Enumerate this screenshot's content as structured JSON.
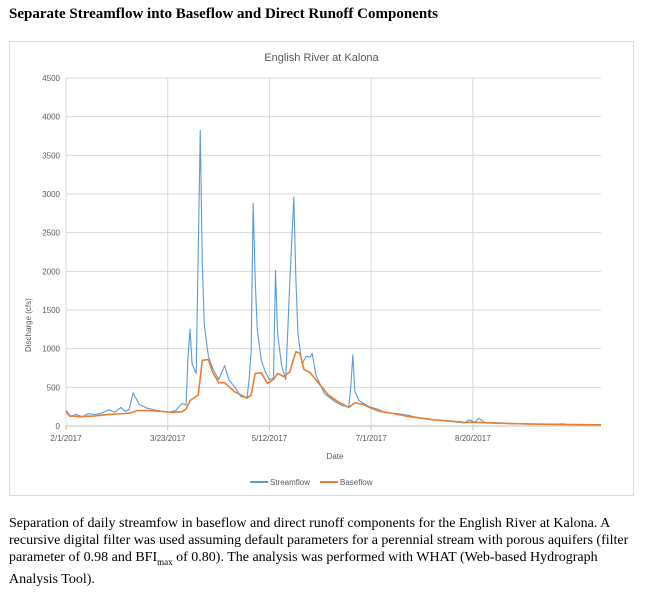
{
  "heading": "Separate Streamflow into Baseflow and Direct Runoff Components",
  "caption": {
    "part1": "Separation of daily streamfow in baseflow and direct runoff components for the English River at Kalona. A recursive digital filter was used assuming default parameters for a perennial stream with porous aquifers (filter parameter of 0.98 and BFI",
    "sub": "max",
    "part2": " of 0.80). The analysis was performed with WHAT (Web-based Hydrograph Analysis Tool)."
  },
  "chart_data": {
    "type": "line",
    "title": "English River at Kalona",
    "xlabel": "Date",
    "ylabel": "Discharge (cfs)",
    "ylim": [
      0,
      4500
    ],
    "yticks": [
      0,
      500,
      1000,
      1500,
      2000,
      2500,
      3000,
      3500,
      4000,
      4500
    ],
    "xlim": [
      "2017-02-01",
      "2017-10-22"
    ],
    "xticks": [
      "2017-02-01",
      "2017-03-23",
      "2017-05-12",
      "2017-07-01",
      "2017-08-20"
    ],
    "xtick_labels": [
      "2/1/2017",
      "3/23/2017",
      "5/12/2017",
      "7/1/2017",
      "8/20/2017"
    ],
    "grid": true,
    "legend_position": "bottom",
    "colors": {
      "Streamflow": "#5b9bd5",
      "Baseflow": "#ed7d31"
    },
    "series": [
      {
        "name": "Streamflow",
        "points": [
          [
            "2017-02-01",
            180
          ],
          [
            "2017-02-03",
            120
          ],
          [
            "2017-02-06",
            150
          ],
          [
            "2017-02-09",
            120
          ],
          [
            "2017-02-12",
            160
          ],
          [
            "2017-02-15",
            150
          ],
          [
            "2017-02-18",
            160
          ],
          [
            "2017-02-22",
            210
          ],
          [
            "2017-02-25",
            180
          ],
          [
            "2017-02-28",
            240
          ],
          [
            "2017-03-02",
            190
          ],
          [
            "2017-03-04",
            210
          ],
          [
            "2017-03-06",
            430
          ],
          [
            "2017-03-09",
            280
          ],
          [
            "2017-03-13",
            230
          ],
          [
            "2017-03-16",
            210
          ],
          [
            "2017-03-20",
            190
          ],
          [
            "2017-03-24",
            180
          ],
          [
            "2017-03-27",
            200
          ],
          [
            "2017-03-30",
            290
          ],
          [
            "2017-04-01",
            270
          ],
          [
            "2017-04-02",
            900
          ],
          [
            "2017-04-03",
            1250
          ],
          [
            "2017-04-04",
            800
          ],
          [
            "2017-04-06",
            680
          ],
          [
            "2017-04-08",
            3820
          ],
          [
            "2017-04-09",
            2100
          ],
          [
            "2017-04-10",
            1300
          ],
          [
            "2017-04-12",
            900
          ],
          [
            "2017-04-14",
            750
          ],
          [
            "2017-04-17",
            600
          ],
          [
            "2017-04-20",
            780
          ],
          [
            "2017-04-22",
            600
          ],
          [
            "2017-04-25",
            500
          ],
          [
            "2017-04-28",
            380
          ],
          [
            "2017-05-01",
            370
          ],
          [
            "2017-05-02",
            600
          ],
          [
            "2017-05-03",
            950
          ],
          [
            "2017-05-04",
            2880
          ],
          [
            "2017-05-05",
            1900
          ],
          [
            "2017-05-06",
            1250
          ],
          [
            "2017-05-08",
            850
          ],
          [
            "2017-05-10",
            700
          ],
          [
            "2017-05-12",
            600
          ],
          [
            "2017-05-14",
            620
          ],
          [
            "2017-05-15",
            2010
          ],
          [
            "2017-05-16",
            1200
          ],
          [
            "2017-05-18",
            780
          ],
          [
            "2017-05-20",
            600
          ],
          [
            "2017-05-22",
            1850
          ],
          [
            "2017-05-24",
            2960
          ],
          [
            "2017-05-25",
            1900
          ],
          [
            "2017-05-26",
            1200
          ],
          [
            "2017-05-28",
            800
          ],
          [
            "2017-05-30",
            900
          ],
          [
            "2017-06-01",
            890
          ],
          [
            "2017-06-02",
            940
          ],
          [
            "2017-06-04",
            650
          ],
          [
            "2017-06-08",
            420
          ],
          [
            "2017-06-13",
            320
          ],
          [
            "2017-06-17",
            260
          ],
          [
            "2017-06-20",
            250
          ],
          [
            "2017-06-21",
            500
          ],
          [
            "2017-06-22",
            920
          ],
          [
            "2017-06-23",
            450
          ],
          [
            "2017-06-25",
            330
          ],
          [
            "2017-06-30",
            250
          ],
          [
            "2017-07-04",
            220
          ],
          [
            "2017-07-08",
            170
          ],
          [
            "2017-07-14",
            160
          ],
          [
            "2017-07-19",
            140
          ],
          [
            "2017-07-22",
            120
          ],
          [
            "2017-07-28",
            90
          ],
          [
            "2017-08-05",
            70
          ],
          [
            "2017-08-12",
            50
          ],
          [
            "2017-08-16",
            40
          ],
          [
            "2017-08-18",
            80
          ],
          [
            "2017-08-21",
            50
          ],
          [
            "2017-08-23",
            100
          ],
          [
            "2017-08-26",
            40
          ],
          [
            "2017-09-01",
            35
          ],
          [
            "2017-09-15",
            25
          ],
          [
            "2017-09-30",
            20
          ],
          [
            "2017-10-03",
            30
          ],
          [
            "2017-10-05",
            20
          ],
          [
            "2017-10-22",
            15
          ]
        ]
      },
      {
        "name": "Baseflow",
        "points": [
          [
            "2017-02-01",
            200
          ],
          [
            "2017-02-03",
            130
          ],
          [
            "2017-02-08",
            120
          ],
          [
            "2017-02-15",
            130
          ],
          [
            "2017-02-22",
            150
          ],
          [
            "2017-03-01",
            160
          ],
          [
            "2017-03-05",
            170
          ],
          [
            "2017-03-08",
            200
          ],
          [
            "2017-03-13",
            200
          ],
          [
            "2017-03-20",
            190
          ],
          [
            "2017-03-25",
            175
          ],
          [
            "2017-03-30",
            185
          ],
          [
            "2017-04-01",
            220
          ],
          [
            "2017-04-03",
            330
          ],
          [
            "2017-04-07",
            400
          ],
          [
            "2017-04-09",
            850
          ],
          [
            "2017-04-12",
            860
          ],
          [
            "2017-04-14",
            700
          ],
          [
            "2017-04-17",
            560
          ],
          [
            "2017-04-20",
            560
          ],
          [
            "2017-04-25",
            440
          ],
          [
            "2017-05-01",
            360
          ],
          [
            "2017-05-03",
            400
          ],
          [
            "2017-05-05",
            680
          ],
          [
            "2017-05-08",
            690
          ],
          [
            "2017-05-11",
            550
          ],
          [
            "2017-05-14",
            600
          ],
          [
            "2017-05-16",
            680
          ],
          [
            "2017-05-19",
            640
          ],
          [
            "2017-05-22",
            700
          ],
          [
            "2017-05-25",
            960
          ],
          [
            "2017-05-27",
            940
          ],
          [
            "2017-05-29",
            730
          ],
          [
            "2017-06-01",
            690
          ],
          [
            "2017-06-05",
            560
          ],
          [
            "2017-06-10",
            400
          ],
          [
            "2017-06-15",
            310
          ],
          [
            "2017-06-20",
            240
          ],
          [
            "2017-06-23",
            300
          ],
          [
            "2017-06-27",
            280
          ],
          [
            "2017-07-01",
            230
          ],
          [
            "2017-07-05",
            190
          ],
          [
            "2017-07-12",
            160
          ],
          [
            "2017-07-20",
            120
          ],
          [
            "2017-08-01",
            80
          ],
          [
            "2017-08-15",
            50
          ],
          [
            "2017-08-25",
            45
          ],
          [
            "2017-09-10",
            30
          ],
          [
            "2017-10-01",
            20
          ],
          [
            "2017-10-22",
            15
          ]
        ]
      }
    ]
  }
}
